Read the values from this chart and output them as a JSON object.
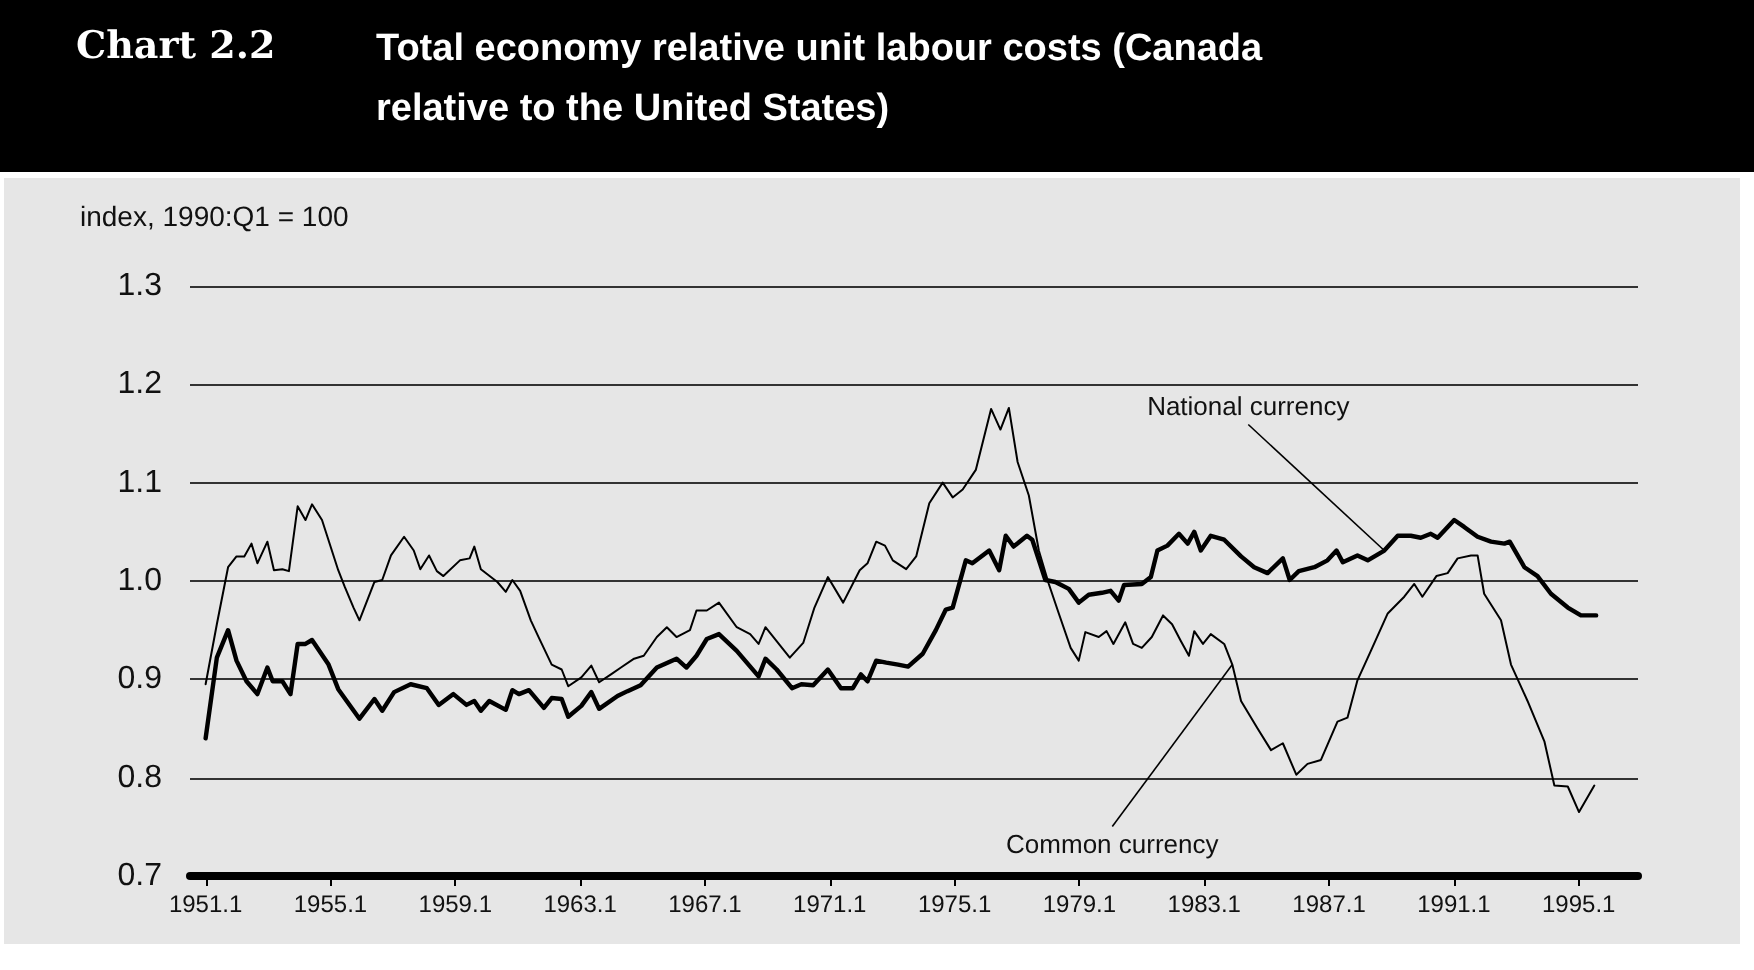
{
  "chart_data": {
    "type": "line",
    "title": "Chart 2.2",
    "subtitle": "Total economy relative unit labour costs (Canada relative to the United States)",
    "ylabel": "index, 1990:Q1 = 100",
    "xlim": [
      1950.6,
      1997.0
    ],
    "xticks": [
      1951.1,
      1955.1,
      1959.1,
      1963.1,
      1967.1,
      1971.1,
      1975.1,
      1979.1,
      1983.1,
      1987.1,
      1991.1,
      1995.1
    ],
    "ylim": [
      0.7,
      1.3
    ],
    "yticks": [
      0.7,
      0.8,
      0.9,
      {
        "value": 1,
        "label": "1.0"
      },
      1.1,
      1.2,
      1.3
    ],
    "grid": "y",
    "legend": false,
    "marker": "none",
    "line_style": "solid",
    "series": [
      {
        "name": "National currency",
        "color": "#000000",
        "x": [
          1951.1,
          1951.46,
          1951.82,
          1952.09,
          1952.41,
          1952.76,
          1953.08,
          1953.25,
          1953.56,
          1953.82,
          1954.05,
          1954.3,
          1954.51,
          1955.04,
          1955.35,
          1956.03,
          1956.51,
          1956.76,
          1957.14,
          1957.67,
          1958.19,
          1958.57,
          1959.04,
          1959.46,
          1959.71,
          1959.92,
          1960.19,
          1960.72,
          1960.93,
          1961.14,
          1961.46,
          1961.94,
          1962.19,
          1962.51,
          1962.72,
          1963.14,
          1963.46,
          1963.71,
          1964.3,
          1964.62,
          1965.04,
          1965.56,
          1966.19,
          1966.51,
          1966.83,
          1967.16,
          1967.55,
          1968.12,
          1968.82,
          1969.04,
          1969.4,
          1969.89,
          1970.19,
          1970.57,
          1971.04,
          1971.46,
          1971.84,
          1972.1,
          1972.31,
          1972.59,
          1972.91,
          1973.29,
          1973.61,
          1974.08,
          1974.5,
          1974.82,
          1975.04,
          1975.46,
          1975.67,
          1976.21,
          1976.53,
          1976.74,
          1976.99,
          1977.42,
          1977.59,
          1978.01,
          1978.33,
          1978.76,
          1979.08,
          1979.4,
          1979.82,
          1980.1,
          1980.36,
          1980.53,
          1981.1,
          1981.39,
          1981.6,
          1981.92,
          1982.29,
          1982.57,
          1982.78,
          1982.99,
          1983.31,
          1983.74,
          1984.28,
          1984.7,
          1985.13,
          1985.62,
          1985.84,
          1986.13,
          1986.63,
          1987.05,
          1987.34,
          1987.54,
          1988.01,
          1988.34,
          1988.87,
          1989.3,
          1989.72,
          1990.04,
          1990.36,
          1990.58,
          1991.11,
          1991.43,
          1991.86,
          1992.29,
          1992.72,
          1992.89,
          1993.36,
          1993.78,
          1994.21,
          1994.75,
          1995.17,
          1995.66
        ],
        "values": [
          0.84,
          0.922,
          0.95,
          0.919,
          0.898,
          0.885,
          0.912,
          0.898,
          0.898,
          0.885,
          0.936,
          0.936,
          0.94,
          0.915,
          0.89,
          0.86,
          0.88,
          0.868,
          0.887,
          0.895,
          0.891,
          0.874,
          0.885,
          0.874,
          0.878,
          0.868,
          0.878,
          0.869,
          0.889,
          0.885,
          0.889,
          0.871,
          0.881,
          0.88,
          0.862,
          0.873,
          0.887,
          0.87,
          0.883,
          0.888,
          0.894,
          0.912,
          0.921,
          0.912,
          0.924,
          0.941,
          0.946,
          0.929,
          0.903,
          0.921,
          0.91,
          0.891,
          0.895,
          0.894,
          0.91,
          0.891,
          0.891,
          0.905,
          0.898,
          0.919,
          0.917,
          0.915,
          0.913,
          0.926,
          0.95,
          0.971,
          0.973,
          1.021,
          1.018,
          1.031,
          1.011,
          1.046,
          1.035,
          1.046,
          1.042,
          1.001,
          0.999,
          0.992,
          0.978,
          0.986,
          0.988,
          0.99,
          0.98,
          0.996,
          0.997,
          1.004,
          1.031,
          1.036,
          1.048,
          1.038,
          1.05,
          1.031,
          1.046,
          1.042,
          1.025,
          1.014,
          1.008,
          1.023,
          1.001,
          1.01,
          1.014,
          1.021,
          1.031,
          1.019,
          1.026,
          1.021,
          1.031,
          1.046,
          1.046,
          1.044,
          1.048,
          1.044,
          1.062,
          1.055,
          1.045,
          1.04,
          1.038,
          1.04,
          1.014,
          1.005,
          0.987,
          0.973,
          0.965,
          0.965
        ]
      },
      {
        "name": "Common currency",
        "color": "#000000",
        "x": [
          1951.1,
          1951.46,
          1951.82,
          1952.09,
          1952.34,
          1952.57,
          1952.76,
          1953.08,
          1953.29,
          1953.56,
          1953.77,
          1954.05,
          1954.3,
          1954.51,
          1954.83,
          1955.35,
          1955.56,
          1955.84,
          1956.03,
          1956.51,
          1956.76,
          1957.04,
          1957.46,
          1957.77,
          1957.98,
          1958.26,
          1958.51,
          1958.72,
          1959.25,
          1959.56,
          1959.71,
          1959.92,
          1960.45,
          1960.72,
          1960.93,
          1961.18,
          1961.52,
          1961.77,
          1962.19,
          1962.51,
          1962.72,
          1963.14,
          1963.46,
          1963.71,
          1964.09,
          1964.41,
          1964.83,
          1965.14,
          1965.56,
          1965.88,
          1966.19,
          1966.62,
          1966.83,
          1967.16,
          1967.55,
          1968.12,
          1968.55,
          1968.82,
          1969.04,
          1969.82,
          1970.25,
          1970.61,
          1971.04,
          1971.53,
          1972.06,
          1972.31,
          1972.59,
          1972.87,
          1973.12,
          1973.55,
          1973.87,
          1974.29,
          1974.72,
          1975.04,
          1975.36,
          1975.78,
          1976.27,
          1976.57,
          1976.84,
          1977.12,
          1977.48,
          1977.8,
          1978.12,
          1978.44,
          1978.82,
          1979.08,
          1979.29,
          1979.72,
          1979.97,
          1980.19,
          1980.57,
          1980.82,
          1981.1,
          1981.42,
          1981.78,
          1982.07,
          1982.35,
          1982.61,
          1982.78,
          1983.06,
          1983.31,
          1983.74,
          1984.0,
          1984.28,
          1984.81,
          1985.24,
          1985.62,
          1986.05,
          1986.41,
          1986.84,
          1987.37,
          1987.69,
          1988.01,
          1988.44,
          1988.98,
          1989.51,
          1989.83,
          1990.09,
          1990.54,
          1990.9,
          1991.22,
          1991.65,
          1991.86,
          1992.07,
          1992.61,
          1992.93,
          1993.46,
          1994.0,
          1994.32,
          1994.75,
          1995.11,
          1995.6
        ],
        "values": [
          0.895,
          0.956,
          1.014,
          1.025,
          1.025,
          1.038,
          1.018,
          1.04,
          1.011,
          1.012,
          1.01,
          1.076,
          1.062,
          1.078,
          1.062,
          1.011,
          0.994,
          0.973,
          0.96,
          0.999,
          1.001,
          1.026,
          1.045,
          1.031,
          1.012,
          1.026,
          1.01,
          1.005,
          1.021,
          1.023,
          1.035,
          1.012,
          0.999,
          0.989,
          1.001,
          0.99,
          0.96,
          0.943,
          0.915,
          0.91,
          0.893,
          0.902,
          0.914,
          0.897,
          0.905,
          0.912,
          0.921,
          0.924,
          0.943,
          0.953,
          0.943,
          0.95,
          0.97,
          0.97,
          0.978,
          0.953,
          0.946,
          0.936,
          0.953,
          0.922,
          0.937,
          0.973,
          1.004,
          0.978,
          1.011,
          1.018,
          1.04,
          1.036,
          1.021,
          1.012,
          1.025,
          1.079,
          1.1,
          1.085,
          1.093,
          1.113,
          1.175,
          1.154,
          1.176,
          1.121,
          1.087,
          1.031,
          0.997,
          0.967,
          0.932,
          0.919,
          0.948,
          0.943,
          0.949,
          0.936,
          0.958,
          0.936,
          0.932,
          0.943,
          0.965,
          0.956,
          0.939,
          0.924,
          0.949,
          0.936,
          0.946,
          0.936,
          0.915,
          0.878,
          0.85,
          0.828,
          0.835,
          0.803,
          0.814,
          0.818,
          0.857,
          0.861,
          0.899,
          0.929,
          0.967,
          0.984,
          0.997,
          0.984,
          1.005,
          1.008,
          1.023,
          1.026,
          1.026,
          0.987,
          0.96,
          0.915,
          0.878,
          0.837,
          0.792,
          0.791,
          0.765,
          0.792
        ]
      }
    ]
  }
}
